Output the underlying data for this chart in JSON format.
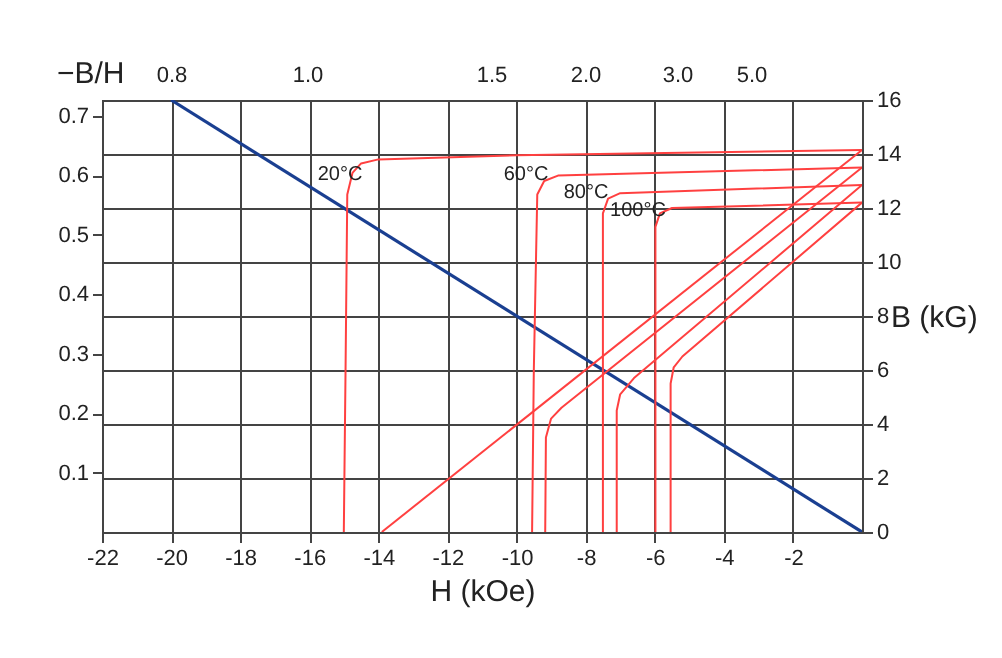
{
  "chart_data": {
    "type": "line",
    "xlabel": "H (kOe)",
    "ylabel": "B (kG)",
    "y2label": "−B/H",
    "xlim": [
      -22,
      0
    ],
    "xticks": [
      -22,
      -20,
      -18,
      -16,
      -14,
      -12,
      -10,
      -8,
      -6,
      -4,
      -2
    ],
    "ylim": [
      0,
      16
    ],
    "yticks": [
      0,
      2,
      4,
      6,
      8,
      10,
      12,
      14,
      16
    ],
    "y2lim": [
      0,
      0.727
    ],
    "y2ticks": [
      0.1,
      0.2,
      0.3,
      0.4,
      0.5,
      0.6,
      0.7
    ],
    "grid": true,
    "marker": "none",
    "line_style": "solid",
    "series": [
      {
        "color": "#1a3f91",
        "x": [
          -20,
          0
        ],
        "values": [
          16,
          0
        ]
      },
      {
        "color": "#ff4040",
        "x": [
          0,
          -10,
          -14,
          -14.5,
          -14.75,
          -14.9,
          -14.95,
          -15.0
        ],
        "values": [
          14.15,
          13.95,
          13.8,
          13.65,
          13.3,
          12.5,
          6,
          0
        ]
      },
      {
        "color": "#ff4040",
        "x": [
          0,
          -13.9
        ],
        "values": [
          14.15,
          0
        ]
      },
      {
        "color": "#ff4040",
        "x": [
          0,
          -8.8,
          -9.2,
          -9.4,
          -9.5,
          -9.55
        ],
        "values": [
          13.5,
          13.2,
          13.0,
          12.5,
          6,
          0
        ]
      },
      {
        "color": "#ff4040",
        "x": [
          0,
          -8.7,
          -9.0,
          -9.15,
          -9.17
        ],
        "values": [
          13.5,
          4.6,
          4.2,
          3.5,
          0
        ]
      },
      {
        "color": "#ff4040",
        "x": [
          0,
          -7.0,
          -7.35,
          -7.5,
          -7.5
        ],
        "values": [
          12.85,
          12.55,
          12.35,
          11.8,
          0
        ]
      },
      {
        "color": "#ff4040",
        "x": [
          0,
          -6.6,
          -7.0,
          -7.1,
          -7.1
        ],
        "values": [
          12.85,
          5.7,
          5.1,
          4.5,
          0
        ]
      },
      {
        "color": "#ff4040",
        "x": [
          0,
          -5.5,
          -5.85,
          -5.98,
          -5.98
        ],
        "values": [
          12.2,
          12.0,
          11.8,
          11.3,
          0
        ]
      },
      {
        "color": "#ff4040",
        "x": [
          0,
          -5.2,
          -5.45,
          -5.54,
          -5.54
        ],
        "values": [
          12.2,
          6.5,
          6.1,
          5.5,
          0
        ]
      }
    ],
    "annotations": [
      "20°C",
      "60°C",
      "80°C",
      "100°C",
      "0.8",
      "1.0",
      "1.5",
      "2.0",
      "3.0",
      "5.0"
    ]
  }
}
